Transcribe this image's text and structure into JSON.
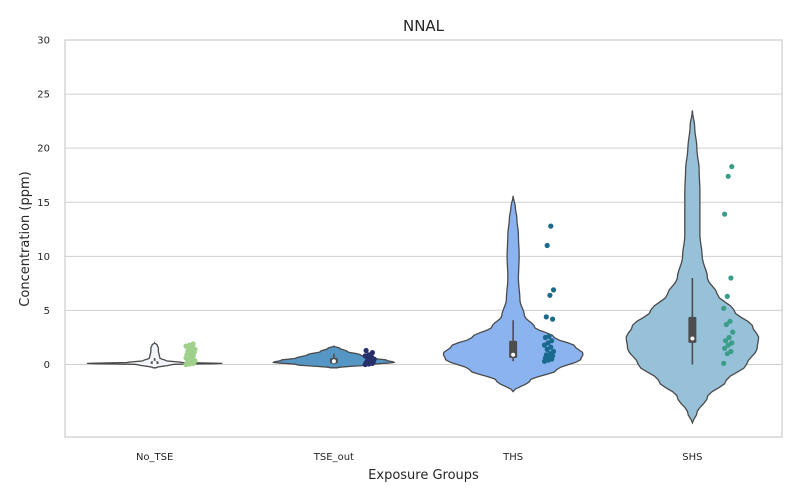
{
  "chart_data": {
    "type": "violin",
    "title": "NNAL",
    "xlabel": "Exposure Groups",
    "ylabel": "Concentration (ppm)",
    "ylim": [
      -6.7,
      30
    ],
    "yticks": [
      "0",
      "5",
      "10",
      "15",
      "20",
      "25",
      "30"
    ],
    "grid": "horizontal",
    "categories": [
      "No_TSE",
      "TSE_out",
      "THS",
      "SHS"
    ],
    "colors": {
      "violins": [
        "#f1f4f8",
        "#5596c4",
        "#8ab3f0",
        "#97c1d8"
      ],
      "points": [
        "#9fd08c",
        "#27306b",
        "#1a6a8e",
        "#3a9d88"
      ],
      "outline": "#4a4a4a",
      "grid": "#d0d0d0",
      "box": "#4d4d4d"
    },
    "series": [
      {
        "category": "No_TSE",
        "points": [
          0.0,
          0.05,
          0.1,
          0.1,
          0.15,
          0.2,
          0.2,
          0.3,
          0.35,
          0.4,
          0.5,
          0.6,
          0.7,
          0.8,
          0.9,
          1.0,
          1.1,
          1.2,
          1.3,
          1.4,
          1.5,
          1.6,
          1.7,
          1.8,
          1.9
        ],
        "box": {
          "q1": 0.05,
          "median": 0.15,
          "q3": 0.3,
          "whisker_low": 0.0,
          "whisker_high": 0.6
        },
        "violin_extent": [
          -0.3,
          2.0
        ],
        "violin_profile": [
          [
            -0.3,
            0.02
          ],
          [
            0.0,
            0.22
          ],
          [
            0.1,
            0.9
          ],
          [
            0.2,
            0.35
          ],
          [
            0.35,
            0.15
          ],
          [
            0.6,
            0.07
          ],
          [
            0.9,
            0.06
          ],
          [
            1.2,
            0.05
          ],
          [
            1.5,
            0.05
          ],
          [
            1.8,
            0.035
          ],
          [
            2.0,
            0.0
          ]
        ]
      },
      {
        "category": "TSE_out",
        "points": [
          0.0,
          0.05,
          0.1,
          0.15,
          0.2,
          0.25,
          0.3,
          0.4,
          0.5,
          0.6,
          0.7,
          0.8,
          0.9,
          1.1,
          1.3
        ],
        "box": {
          "q1": 0.1,
          "median": 0.3,
          "q3": 0.6,
          "whisker_low": 0.0,
          "whisker_high": 1.0
        },
        "violin_extent": [
          -0.3,
          1.7
        ],
        "violin_profile": [
          [
            -0.3,
            0.05
          ],
          [
            0.0,
            0.5
          ],
          [
            0.2,
            0.8
          ],
          [
            0.4,
            0.7
          ],
          [
            0.6,
            0.5
          ],
          [
            0.9,
            0.35
          ],
          [
            1.2,
            0.18
          ],
          [
            1.5,
            0.08
          ],
          [
            1.7,
            0.0
          ]
        ]
      },
      {
        "category": "THS",
        "points": [
          0.3,
          0.4,
          0.5,
          0.6,
          0.7,
          0.8,
          0.9,
          1.0,
          1.2,
          1.4,
          1.6,
          1.8,
          2.0,
          2.2,
          2.5,
          2.6,
          4.2,
          4.4,
          6.4,
          6.9,
          11.0,
          12.8
        ],
        "box": {
          "q1": 0.6,
          "median": 0.9,
          "q3": 2.2,
          "whisker_low": 0.3,
          "whisker_high": 4.1
        },
        "violin_extent": [
          -2.5,
          15.6
        ],
        "violin_profile": [
          [
            -2.5,
            0.0
          ],
          [
            -1.5,
            0.22
          ],
          [
            -0.5,
            0.58
          ],
          [
            0.5,
            0.9
          ],
          [
            1.0,
            0.93
          ],
          [
            1.7,
            0.82
          ],
          [
            2.5,
            0.55
          ],
          [
            3.5,
            0.28
          ],
          [
            4.5,
            0.15
          ],
          [
            6.0,
            0.09
          ],
          [
            8.0,
            0.07
          ],
          [
            10.0,
            0.08
          ],
          [
            12.0,
            0.07
          ],
          [
            13.5,
            0.05
          ],
          [
            14.5,
            0.03
          ],
          [
            15.6,
            0.0
          ]
        ]
      },
      {
        "category": "SHS",
        "points": [
          0.1,
          1.0,
          1.2,
          1.5,
          1.8,
          2.0,
          2.2,
          2.5,
          3.0,
          3.7,
          4.0,
          5.2,
          6.3,
          8.0,
          13.9,
          17.4,
          18.3
        ],
        "box": {
          "q1": 2.0,
          "median": 2.4,
          "q3": 4.4,
          "whisker_low": 0.0,
          "whisker_high": 8.0
        },
        "violin_extent": [
          -5.4,
          23.5
        ],
        "violin_profile": [
          [
            -5.4,
            0.0
          ],
          [
            -4.5,
            0.06
          ],
          [
            -3.0,
            0.2
          ],
          [
            -1.5,
            0.45
          ],
          [
            0.0,
            0.72
          ],
          [
            1.5,
            0.86
          ],
          [
            2.5,
            0.88
          ],
          [
            3.5,
            0.8
          ],
          [
            5.0,
            0.55
          ],
          [
            6.5,
            0.33
          ],
          [
            8.0,
            0.2
          ],
          [
            10.0,
            0.13
          ],
          [
            12.0,
            0.1
          ],
          [
            14.0,
            0.1
          ],
          [
            16.0,
            0.1
          ],
          [
            18.0,
            0.09
          ],
          [
            20.0,
            0.06
          ],
          [
            22.0,
            0.03
          ],
          [
            23.5,
            0.0
          ]
        ]
      }
    ]
  }
}
